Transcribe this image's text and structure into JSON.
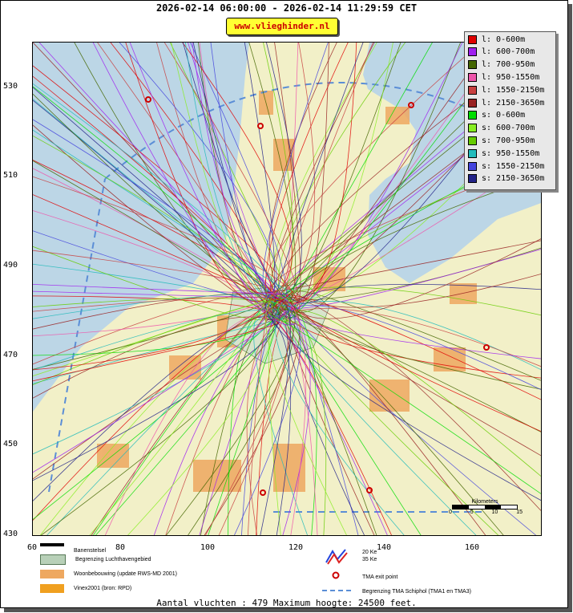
{
  "title": "2026-02-14 06:00:00 - 2026-02-14 11:29:59 CET",
  "site_label": "www.vlieghinder.nl",
  "footer": "Aantal vluchten : 479 Maximum hoogte: 24500 feet.",
  "axes": {
    "y_ticks": [
      "530",
      "510",
      "490",
      "470",
      "450",
      "430"
    ],
    "x_ticks": [
      "60",
      "80",
      "100",
      "120",
      "140",
      "160"
    ],
    "xlim": [
      60,
      175
    ],
    "ylim": [
      430,
      540
    ]
  },
  "legend": [
    {
      "label": "l: 0-600m",
      "color": "#e00000"
    },
    {
      "label": "l: 600-700m",
      "color": "#a020f0"
    },
    {
      "label": "l: 700-950m",
      "color": "#446600"
    },
    {
      "label": "l: 950-1550m",
      "color": "#ee55aa"
    },
    {
      "label": "l: 1550-2150m",
      "color": "#c84040"
    },
    {
      "label": "l: 2150-3650m",
      "color": "#992222"
    },
    {
      "label": "s: 0-600m",
      "color": "#00dd00"
    },
    {
      "label": "s: 600-700m",
      "color": "#88ee22"
    },
    {
      "label": "s: 700-950m",
      "color": "#66cc00"
    },
    {
      "label": "s: 950-1550m",
      "color": "#22bbbb"
    },
    {
      "label": "s: 1550-2150m",
      "color": "#4444dd"
    },
    {
      "label": "s: 2150-3650m",
      "color": "#222288"
    }
  ],
  "bottom_legend": {
    "runway": "Banenstelsel",
    "airport_boundary": "Begrenzing Luchthavengebied",
    "housing": "Woonbebouwing (update RWS-MD 2001)",
    "vinex": "Vinex2001 (bron: RPD)",
    "noise_20": "20 Ke",
    "noise_35": "35 Ke",
    "tma_exit": "TMA exit point",
    "tma_boundary": "Begrenzing TMA Schiphol  (TMA1 en TMA3)"
  },
  "scale": {
    "label": "Kilometers",
    "ticks": [
      "0",
      "5",
      "10",
      "15"
    ]
  },
  "colors": {
    "water": "#bcd6e6",
    "land": "#f2f0c8",
    "urban": "#eea860",
    "airport": "#d8e4cc"
  }
}
